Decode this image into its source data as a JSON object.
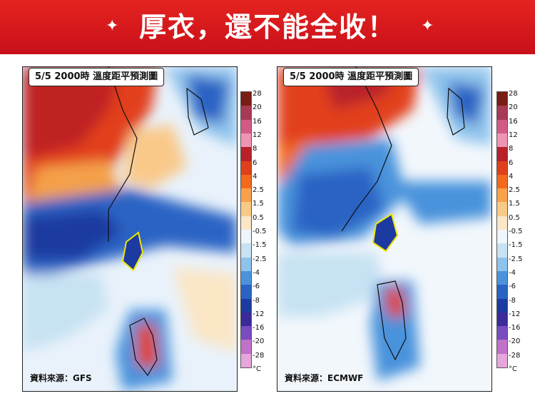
{
  "banner": {
    "title": "厚衣，還不能全收！"
  },
  "panels": [
    {
      "title": "5/5 2000時 溫度距平預測圖",
      "source": "資料來源：GFS"
    },
    {
      "title": "5/5 2000時 溫度距平預測圖",
      "source": "資料來源：ECMWF"
    }
  ],
  "colorbar": {
    "ticks": [
      "28",
      "20",
      "16",
      "12",
      "8",
      "6",
      "4",
      "2.5",
      "1.5",
      "0.5",
      "-0.5",
      "-1.5",
      "-2.5",
      "-4",
      "-6",
      "-8",
      "-12",
      "-16",
      "-20",
      "-28",
      "°C"
    ],
    "colors": [
      "#7a1d14",
      "#a83a55",
      "#d45a86",
      "#ef94b4",
      "#b8202a",
      "#e0401c",
      "#f36a1e",
      "#f9a14a",
      "#f9c986",
      "#fbe6c6",
      "#eef6fb",
      "#c7e2f3",
      "#8ec3ec",
      "#4a93dc",
      "#2a63c4",
      "#1d3aa0",
      "#3b2a9a",
      "#7a4cc0",
      "#c071c9",
      "#e6a5dd"
    ]
  },
  "colors": {
    "banner_red": "#d9161e",
    "taiwan_outline": "#f2e600"
  }
}
